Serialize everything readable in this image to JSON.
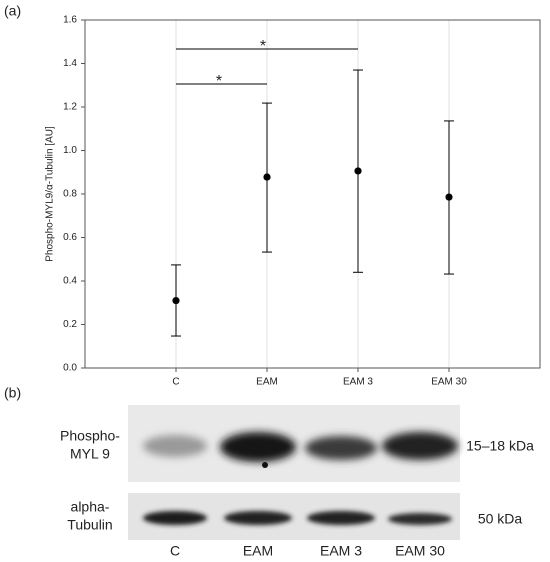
{
  "panels": [
    "(a)",
    "(b)"
  ],
  "chart_data": {
    "type": "errorbar",
    "ylabel": "Phospho-MYL9/α-Tubulin [AU]",
    "categories": [
      "C",
      "EAM",
      "EAM 3",
      "EAM 30"
    ],
    "values": [
      0.31,
      0.878,
      0.906,
      0.786
    ],
    "lower": [
      0.147,
      0.533,
      0.44,
      0.432
    ],
    "upper": [
      0.474,
      1.218,
      1.37,
      1.136
    ],
    "color": "#000000",
    "ylim": [
      0,
      1.6
    ],
    "yticks": [
      {
        "value": 0,
        "label": "0.0"
      },
      0.2,
      0.4,
      0.6,
      0.8,
      {
        "value": 1,
        "label": "1.0"
      },
      1.2,
      1.4,
      1.6
    ],
    "grid": true,
    "annotations": [
      "*",
      "*"
    ]
  },
  "blot": {
    "rows": [
      {
        "label": [
          "Phospho-",
          "MYL 9"
        ],
        "size": "15–18 kDa"
      },
      {
        "label": [
          "alpha-",
          "Tubulin"
        ],
        "size": "50 kDa"
      }
    ],
    "lanes": [
      "C",
      "EAM",
      "EAM 3",
      "EAM 30"
    ]
  }
}
